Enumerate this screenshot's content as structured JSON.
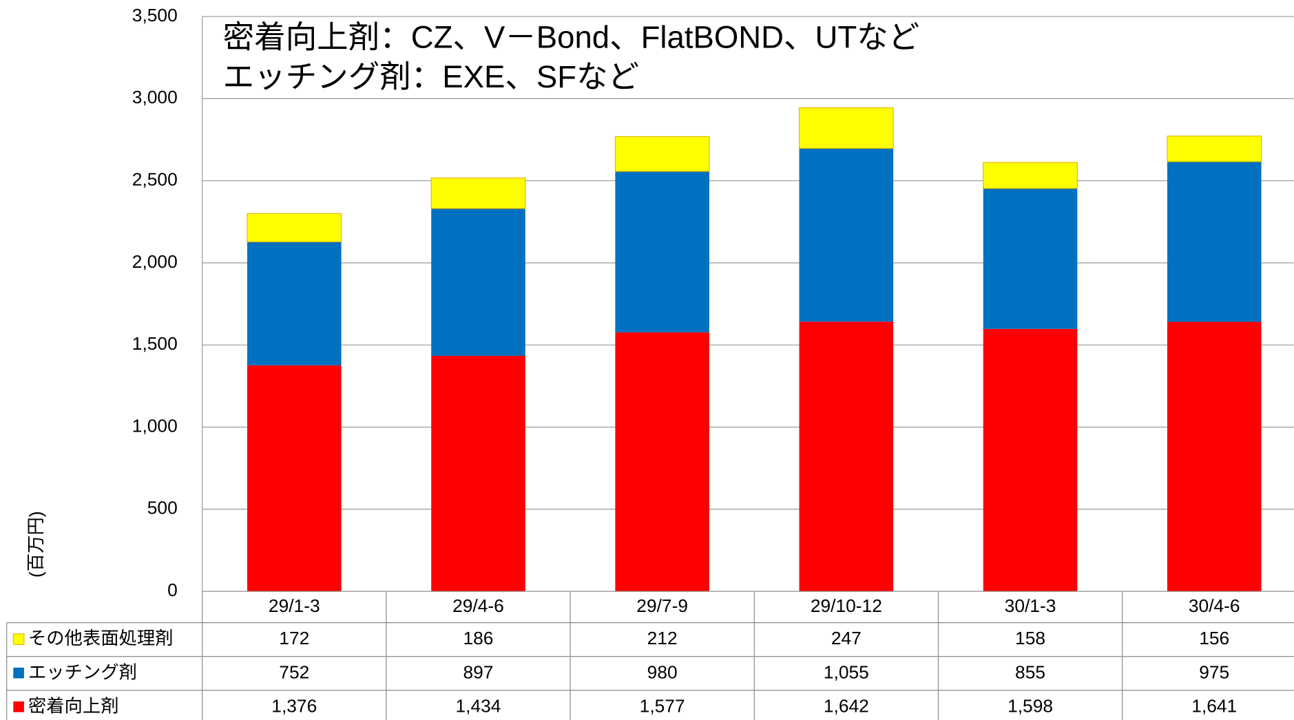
{
  "chart_data": {
    "type": "stacked_bar",
    "ylabel": "(百万円)",
    "annotations": [
      "密着向上剤：CZ、V－Bond、FlatBOND、UTなど",
      "エッチング剤：EXE、SFなど"
    ],
    "categories": [
      "29/1-3",
      "29/4-6",
      "29/7-9",
      "29/10-12",
      "30/1-3",
      "30/4-6"
    ],
    "series": [
      {
        "name": "密着向上剤",
        "color": "#ff0000",
        "values": [
          1376,
          1434,
          1577,
          1642,
          1598,
          1641
        ],
        "value_labels": [
          "1,376",
          "1,434",
          "1,577",
          "1,642",
          "1,598",
          "1,641"
        ]
      },
      {
        "name": "エッチング剤",
        "color": "#0070c0",
        "values": [
          752,
          897,
          980,
          1055,
          855,
          975
        ],
        "value_labels": [
          "752",
          "897",
          "980",
          "1,055",
          "855",
          "975"
        ]
      },
      {
        "name": "その他表面処理剤",
        "color": "#ffff00",
        "values": [
          172,
          186,
          212,
          247,
          158,
          156
        ]
      }
    ],
    "ylim": [
      0,
      3500
    ],
    "yticks": [
      0,
      500,
      {
        "value": 1000,
        "label": "1,000"
      },
      {
        "value": 1500,
        "label": "1,500"
      },
      {
        "value": 2000,
        "label": "2,000"
      },
      {
        "value": 2500,
        "label": "2,500"
      },
      {
        "value": 3000,
        "label": "3,000"
      },
      {
        "value": 3500,
        "label": "3,500"
      }
    ],
    "grid": true
  }
}
